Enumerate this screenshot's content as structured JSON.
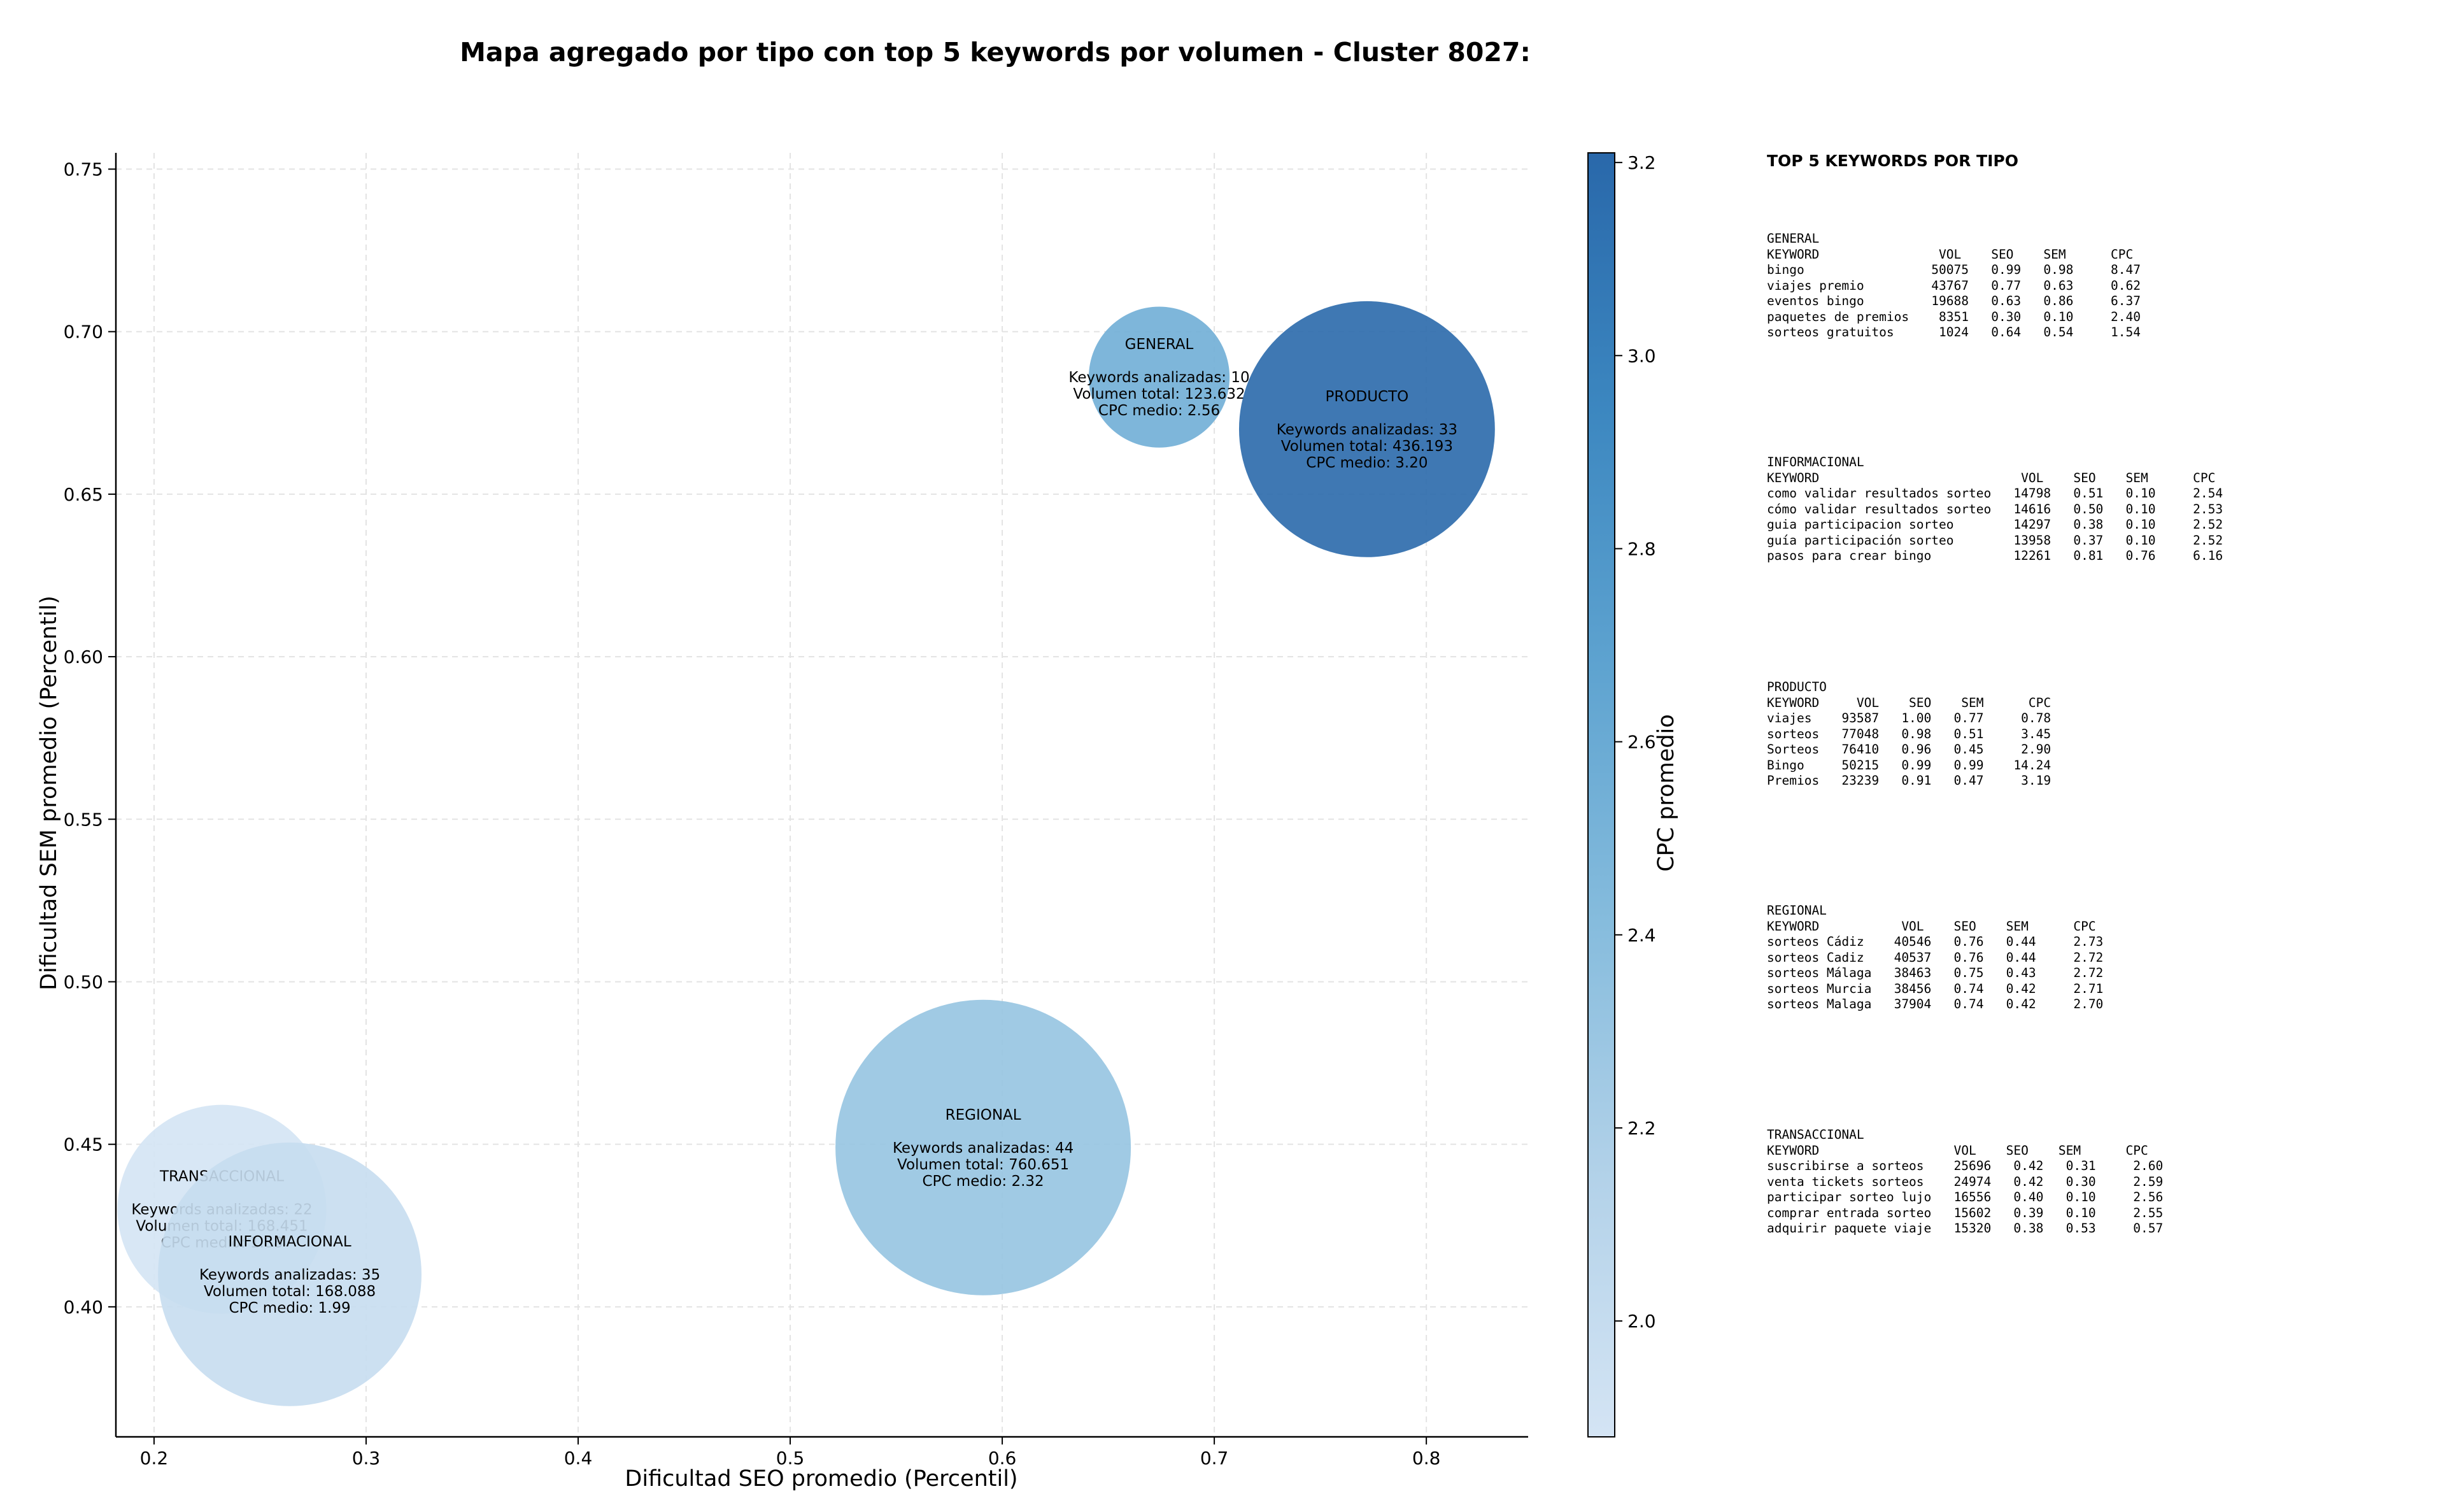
{
  "chart_data": {
    "type": "scatter",
    "title": "Mapa agregado por tipo con top 5 keywords por volumen - Cluster 8027:",
    "xlabel": "Dificultad SEO promedio (Percentil)",
    "ylabel": "Dificultad SEM promedio (Percentil)",
    "xlim": [
      0.182,
      0.848
    ],
    "ylim": [
      0.36,
      0.755
    ],
    "xticks": [
      "0.2",
      "0.3",
      "0.4",
      "0.5",
      "0.6",
      "0.7",
      "0.8"
    ],
    "yticks": [
      "0.40",
      "0.45",
      "0.50",
      "0.55",
      "0.60",
      "0.65",
      "0.70",
      "0.75"
    ],
    "grid": true,
    "colorbar": {
      "label": "CPC promedio",
      "range": [
        1.88,
        3.21
      ],
      "ticks": [
        "2.0",
        "2.2",
        "2.4",
        "2.6",
        "2.8",
        "3.0",
        "3.2"
      ],
      "colors": [
        "#d4e4f4",
        "#b3d2e9",
        "#86bcdd",
        "#5ea3d0",
        "#3c87c0",
        "#2968aa"
      ]
    },
    "points": [
      {
        "name": "TRANSACCIONAL",
        "x": 0.232,
        "y": 0.43,
        "keywords": "Keywords analizadas: 22",
        "volumen": "Volumen total: 168.451",
        "cpc_text": "CPC medio: 1.88",
        "cpc": 1.88,
        "count": 22
      },
      {
        "name": "INFORMACIONAL",
        "x": 0.264,
        "y": 0.41,
        "keywords": "Keywords analizadas: 35",
        "volumen": "Volumen total: 168.088",
        "cpc_text": "CPC medio: 1.99",
        "cpc": 1.99,
        "count": 35
      },
      {
        "name": "REGIONAL",
        "x": 0.591,
        "y": 0.449,
        "keywords": "Keywords analizadas: 44",
        "volumen": "Volumen total: 760.651",
        "cpc_text": "CPC medio: 2.32",
        "cpc": 2.32,
        "count": 44
      },
      {
        "name": "GENERAL",
        "x": 0.674,
        "y": 0.686,
        "keywords": "Keywords analizadas: 10",
        "volumen": "Volumen total: 123.632",
        "cpc_text": "CPC medio: 2.56",
        "cpc": 2.56,
        "count": 10
      },
      {
        "name": "PRODUCTO",
        "x": 0.772,
        "y": 0.67,
        "keywords": "Keywords analizadas: 33",
        "volumen": "Volumen total: 436.193",
        "cpc_text": "CPC medio: 3.20",
        "cpc": 3.2,
        "count": 33
      }
    ]
  },
  "panel": {
    "title": "TOP 5 KEYWORDS POR TIPO",
    "tables": [
      {
        "tipo": "GENERAL",
        "header": "KEYWORD                VOL    SEO    SEM      CPC",
        "rows": [
          "bingo                 50075   0.99   0.98     8.47",
          "viajes premio         43767   0.77   0.63     0.62",
          "eventos bingo         19688   0.63   0.86     6.37",
          "paquetes de premios    8351   0.30   0.10     2.40",
          "sorteos gratuitos      1024   0.64   0.54     1.54"
        ]
      },
      {
        "tipo": "INFORMACIONAL",
        "header": "KEYWORD                           VOL    SEO    SEM      CPC",
        "rows": [
          "como validar resultados sorteo   14798   0.51   0.10     2.54",
          "cómo validar resultados sorteo   14616   0.50   0.10     2.53",
          "guia participacion sorteo        14297   0.38   0.10     2.52",
          "guía participación sorteo        13958   0.37   0.10     2.52",
          "pasos para crear bingo           12261   0.81   0.76     6.16"
        ]
      },
      {
        "tipo": "PRODUCTO",
        "header": "KEYWORD     VOL    SEO    SEM      CPC",
        "rows": [
          "viajes    93587   1.00   0.77     0.78",
          "sorteos   77048   0.98   0.51     3.45",
          "Sorteos   76410   0.96   0.45     2.90",
          "Bingo     50215   0.99   0.99    14.24",
          "Premios   23239   0.91   0.47     3.19"
        ]
      },
      {
        "tipo": "REGIONAL",
        "header": "KEYWORD           VOL    SEO    SEM      CPC",
        "rows": [
          "sorteos Cádiz    40546   0.76   0.44     2.73",
          "sorteos Cadiz    40537   0.76   0.44     2.72",
          "sorteos Málaga   38463   0.75   0.43     2.72",
          "sorteos Murcia   38456   0.74   0.42     2.71",
          "sorteos Malaga   37904   0.74   0.42     2.70"
        ]
      },
      {
        "tipo": "TRANSACCIONAL",
        "header": "KEYWORD                  VOL    SEO    SEM      CPC",
        "rows": [
          "suscribirse a sorteos    25696   0.42   0.31     2.60",
          "venta tickets sorteos    24974   0.42   0.30     2.59",
          "participar sorteo lujo   16556   0.40   0.10     2.56",
          "comprar entrada sorteo   15602   0.39   0.10     2.55",
          "adquirir paquete viaje   15320   0.38   0.53     0.57"
        ]
      }
    ]
  }
}
